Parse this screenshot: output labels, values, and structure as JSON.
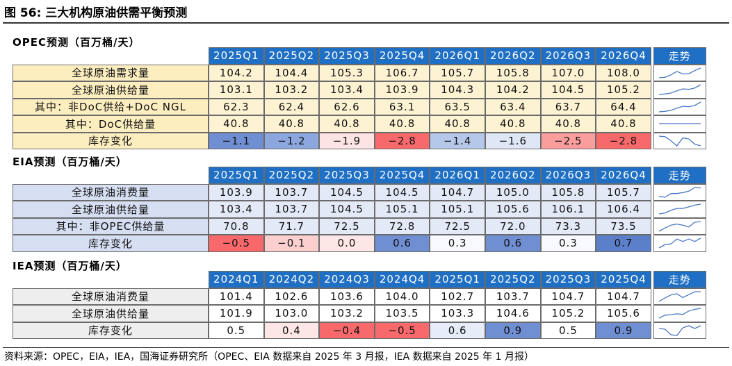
{
  "title": "图 56:  三大机构原油供需平衡预测",
  "sections": [
    {
      "label": "OPEC预测（百万桶/天）",
      "header": [
        "2025Q1",
        "2025Q2",
        "2025Q3",
        "2025Q4",
        "2026Q1",
        "2026Q2",
        "2026Q3",
        "2026Q4",
        "走势"
      ],
      "rows": [
        {
          "label": "全球原油需求量",
          "values": [
            "104.2",
            "104.4",
            "105.3",
            "106.7",
            "105.7",
            "105.8",
            "107.0",
            "108.0"
          ]
        },
        {
          "label": "全球原油供给量",
          "values": [
            "103.1",
            "103.2",
            "103.4",
            "103.9",
            "104.3",
            "104.2",
            "104.5",
            "105.2"
          ]
        },
        {
          "label": "其中：非DoC供给+DoC NGL",
          "values": [
            "62.3",
            "62.4",
            "62.6",
            "63.1",
            "63.5",
            "63.4",
            "63.7",
            "64.4"
          ]
        },
        {
          "label": "其中：DoC供给量",
          "values": [
            "40.8",
            "40.8",
            "40.8",
            "40.8",
            "40.8",
            "40.8",
            "40.8",
            "40.8"
          ]
        },
        {
          "label": "库存变化",
          "values": [
            "−1.1",
            "−1.2",
            "−1.9",
            "−2.8",
            "−1.4",
            "−1.6",
            "−2.5",
            "−2.8"
          ],
          "colors": [
            "#6f8fd2",
            "#8ca7de",
            "#fde4e4",
            "#f8696b",
            "#b6c8ea",
            "#dfe7f6",
            "#fa9d9d",
            "#f8696b"
          ]
        }
      ]
    },
    {
      "label": "EIA预测（百万桶/天）",
      "header": [
        "2025Q1",
        "2025Q2",
        "2025Q3",
        "2025Q4",
        "2026Q1",
        "2026Q2",
        "2026Q3",
        "2026Q4",
        "走势"
      ],
      "rows": [
        {
          "label": "全球原油消费量",
          "values": [
            "103.9",
            "103.7",
            "104.5",
            "104.5",
            "104.7",
            "105.0",
            "105.8",
            "105.7"
          ]
        },
        {
          "label": "全球原油供给量",
          "values": [
            "103.4",
            "103.7",
            "104.5",
            "105.1",
            "105.1",
            "105.6",
            "106.1",
            "106.4"
          ]
        },
        {
          "label": "其中：非OPEC供给量",
          "values": [
            "70.8",
            "71.7",
            "72.5",
            "72.8",
            "72.5",
            "72.0",
            "73.3",
            "73.5"
          ]
        },
        {
          "label": "库存变化",
          "values": [
            "−0.5",
            "−0.1",
            "0.0",
            "0.6",
            "0.3",
            "0.6",
            "0.3",
            "0.7"
          ],
          "colors": [
            "#f8696b",
            "#fccfcf",
            "#fde6e6",
            "#6f8fd2",
            "#f7f9fd",
            "#6f8fd2",
            "#f7f9fd",
            "#5b7fc9"
          ]
        }
      ]
    },
    {
      "label": "IEA预测（百万桶/天）",
      "header": [
        "2024Q1",
        "2024Q2",
        "2024Q3",
        "2024Q4",
        "2025Q1",
        "2025Q2",
        "2025Q3",
        "2025Q4",
        "走势"
      ],
      "rows": [
        {
          "label": "全球原油消费量",
          "values": [
            "101.4",
            "102.6",
            "103.6",
            "104.0",
            "102.7",
            "103.7",
            "104.7",
            "104.7"
          ]
        },
        {
          "label": "全球原油供给量",
          "values": [
            "101.9",
            "103.0",
            "103.2",
            "103.5",
            "103.3",
            "104.6",
            "105.2",
            "105.6"
          ]
        },
        {
          "label": "库存变化",
          "values": [
            "0.5",
            "0.4",
            "−0.4",
            "−0.5",
            "0.6",
            "0.9",
            "0.5",
            "0.9"
          ],
          "colors": [
            "#ffffff",
            "#fde6e6",
            "#f8696b",
            "#f8696b",
            "#e6ecf8",
            "#6f8fd2",
            "#ffffff",
            "#6f8fd2"
          ]
        }
      ]
    }
  ],
  "source": "资料来源：OPEC，EIA，IEA，国海证券研究所（OPEC、EIA 数据来自 2025 年 3 月报，IEA 数据来自 2025 年 1 月报）"
}
